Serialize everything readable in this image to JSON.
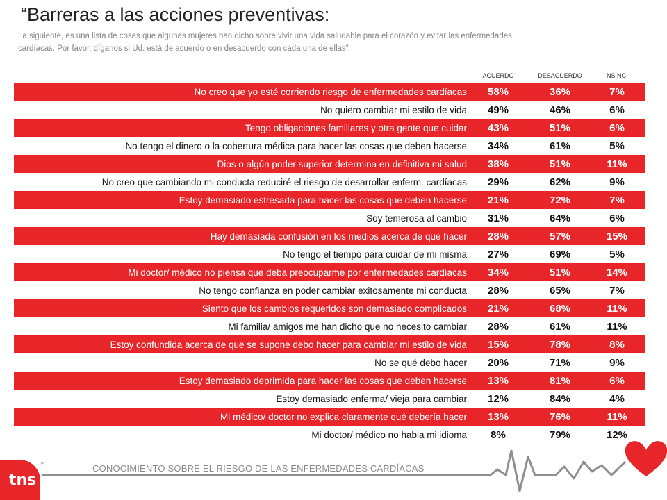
{
  "title": "“Barreras a las acciones preventivas:",
  "subtitle": "La siguiente, es una lista de cosas que algunas mujeres han dicho sobre vivir una vida saludable para el corazón y evitar las enfermedades cardíacas. Por favor, díganos si Ud. está de acuerdo o en desacuerdo con cada una de ellas”",
  "footer": "CONOCIMIENTO SOBRE EL RIESGO DE LAS ENFERMEDADES CARDÍACAS",
  "logo_text": "tns",
  "colors": {
    "accent": "#e8262a",
    "heart": "#e8262a"
  },
  "icons": [
    "tns-logo",
    "ekg-line",
    "heart-icon"
  ],
  "chart_data": {
    "type": "table",
    "columns": [
      "ACUERDO",
      "DESACUERDO",
      "NS NC"
    ],
    "rows": [
      {
        "label": "No creo que yo esté corriendo riesgo de enfermedades cardíacas",
        "acuerdo": "58%",
        "desacuerdo": "36%",
        "nsnc": "7%",
        "highlight": true
      },
      {
        "label": "No quiero cambiar mi estilo de vida",
        "acuerdo": "49%",
        "desacuerdo": "46%",
        "nsnc": "6%",
        "highlight": false
      },
      {
        "label": "Tengo obligaciones familiares y otra gente que cuidar",
        "acuerdo": "43%",
        "desacuerdo": "51%",
        "nsnc": "6%",
        "highlight": true
      },
      {
        "label": "No tengo el dinero o la cobertura médica para hacer las cosas que deben hacerse",
        "acuerdo": "34%",
        "desacuerdo": "61%",
        "nsnc": "5%",
        "highlight": false
      },
      {
        "label": "Dios o algún poder superior determina en definitiva mi salud",
        "acuerdo": "38%",
        "desacuerdo": "51%",
        "nsnc": "11%",
        "highlight": true
      },
      {
        "label": "No creo que cambiando mi conducta reduciré el riesgo de desarrollar enferm. cardíacas",
        "acuerdo": "29%",
        "desacuerdo": "62%",
        "nsnc": "9%",
        "highlight": false
      },
      {
        "label": "Estoy demasiado estresada para hacer las cosas que deben hacerse",
        "acuerdo": "21%",
        "desacuerdo": "72%",
        "nsnc": "7%",
        "highlight": true
      },
      {
        "label": "Soy temerosa al cambio",
        "acuerdo": "31%",
        "desacuerdo": "64%",
        "nsnc": "6%",
        "highlight": false
      },
      {
        "label": "Hay demasiada confusión en los medios acerca de qué hacer",
        "acuerdo": "28%",
        "desacuerdo": "57%",
        "nsnc": "15%",
        "highlight": true
      },
      {
        "label": "No tengo el tiempo para cuidar de mi misma",
        "acuerdo": "27%",
        "desacuerdo": "69%",
        "nsnc": "5%",
        "highlight": false
      },
      {
        "label": "Mi doctor/ médico no piensa que deba preocuparme por enfermedades cardíacas",
        "acuerdo": "34%",
        "desacuerdo": "51%",
        "nsnc": "14%",
        "highlight": true
      },
      {
        "label": "No tengo confianza en poder cambiar exitosamente mi conducta",
        "acuerdo": "28%",
        "desacuerdo": "65%",
        "nsnc": "7%",
        "highlight": false
      },
      {
        "label": "Siento que los cambios requeridos son demasiado complicados",
        "acuerdo": "21%",
        "desacuerdo": "68%",
        "nsnc": "11%",
        "highlight": true
      },
      {
        "label": "Mi familia/ amigos me han dicho que no necesito cambiar",
        "acuerdo": "28%",
        "desacuerdo": "61%",
        "nsnc": "11%",
        "highlight": false
      },
      {
        "label": "Estoy confundida acerca de que se supone debo hacer para cambiar mi estilo de vida",
        "acuerdo": "15%",
        "desacuerdo": "78%",
        "nsnc": "8%",
        "highlight": true
      },
      {
        "label": "No se qué debo hacer",
        "acuerdo": "20%",
        "desacuerdo": "71%",
        "nsnc": "9%",
        "highlight": false
      },
      {
        "label": "Estoy demasiado deprimida para hacer las cosas que deben hacerse",
        "acuerdo": "13%",
        "desacuerdo": "81%",
        "nsnc": "6%",
        "highlight": true
      },
      {
        "label": "Estoy demasiado enferma/ vieja para cambiar",
        "acuerdo": "12%",
        "desacuerdo": "84%",
        "nsnc": "4%",
        "highlight": false
      },
      {
        "label": "Mi médico/ doctor no explica claramente qué debería hacer",
        "acuerdo": "13%",
        "desacuerdo": "76%",
        "nsnc": "11%",
        "highlight": true
      },
      {
        "label": "Mi doctor/ médico no habla mi idioma",
        "acuerdo": "8%",
        "desacuerdo": "79%",
        "nsnc": "12%",
        "highlight": false
      }
    ]
  }
}
